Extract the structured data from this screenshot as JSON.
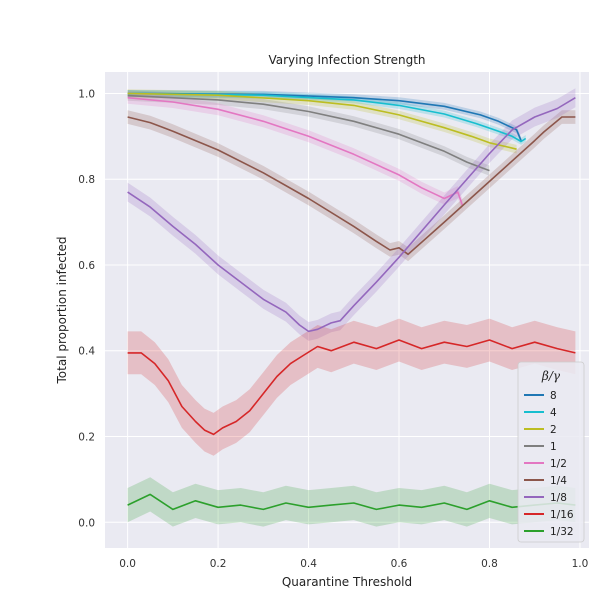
{
  "chart_data": {
    "type": "line",
    "title": "Varying Infection Strength",
    "xlabel": "Quarantine Threshold",
    "ylabel": "Total proportion infected",
    "xlim": [
      -0.05,
      1.02
    ],
    "ylim": [
      -0.06,
      1.05
    ],
    "xticks": [
      0.0,
      0.2,
      0.4,
      0.6,
      0.8,
      1.0
    ],
    "xtick_labels": [
      "0.0",
      "0.2",
      "0.4",
      "0.6",
      "0.8",
      "1.0"
    ],
    "yticks": [
      0.0,
      0.2,
      0.4,
      0.6,
      0.8,
      1.0
    ],
    "ytick_labels": [
      "0.0",
      "0.2",
      "0.4",
      "0.6",
      "0.8",
      "1.0"
    ],
    "grid": true,
    "legend": {
      "title": "β/γ",
      "position": "lower-right"
    },
    "series": [
      {
        "name": "8",
        "color": "#1f77b4",
        "band": 0.008,
        "points": [
          [
            0.0,
            1.0
          ],
          [
            0.3,
            0.998
          ],
          [
            0.5,
            0.99
          ],
          [
            0.6,
            0.983
          ],
          [
            0.7,
            0.97
          ],
          [
            0.78,
            0.95
          ],
          [
            0.82,
            0.935
          ],
          [
            0.85,
            0.92
          ],
          [
            0.86,
            0.915
          ],
          [
            0.87,
            0.89
          ]
        ]
      },
      {
        "name": "4",
        "color": "#17becf",
        "band": 0.008,
        "points": [
          [
            0.0,
            1.0
          ],
          [
            0.3,
            0.996
          ],
          [
            0.5,
            0.985
          ],
          [
            0.6,
            0.972
          ],
          [
            0.7,
            0.952
          ],
          [
            0.77,
            0.93
          ],
          [
            0.82,
            0.912
          ],
          [
            0.85,
            0.9
          ],
          [
            0.87,
            0.888
          ],
          [
            0.88,
            0.895
          ]
        ]
      },
      {
        "name": "2",
        "color": "#bcbd22",
        "band": 0.01,
        "points": [
          [
            0.0,
            1.0
          ],
          [
            0.2,
            0.996
          ],
          [
            0.4,
            0.983
          ],
          [
            0.5,
            0.972
          ],
          [
            0.6,
            0.95
          ],
          [
            0.7,
            0.92
          ],
          [
            0.76,
            0.9
          ],
          [
            0.8,
            0.885
          ],
          [
            0.84,
            0.875
          ],
          [
            0.86,
            0.87
          ]
        ]
      },
      {
        "name": "1",
        "color": "#7f7f7f",
        "band": 0.012,
        "points": [
          [
            0.0,
            0.995
          ],
          [
            0.2,
            0.985
          ],
          [
            0.3,
            0.975
          ],
          [
            0.4,
            0.958
          ],
          [
            0.5,
            0.935
          ],
          [
            0.6,
            0.905
          ],
          [
            0.65,
            0.885
          ],
          [
            0.7,
            0.865
          ],
          [
            0.75,
            0.84
          ],
          [
            0.78,
            0.828
          ],
          [
            0.8,
            0.82
          ]
        ]
      },
      {
        "name": "1/2",
        "color": "#e377c2",
        "band": 0.014,
        "points": [
          [
            0.0,
            0.99
          ],
          [
            0.1,
            0.98
          ],
          [
            0.2,
            0.963
          ],
          [
            0.3,
            0.935
          ],
          [
            0.4,
            0.9
          ],
          [
            0.5,
            0.858
          ],
          [
            0.6,
            0.81
          ],
          [
            0.65,
            0.78
          ],
          [
            0.68,
            0.765
          ],
          [
            0.7,
            0.755
          ],
          [
            0.73,
            0.77
          ],
          [
            0.74,
            0.74
          ]
        ]
      },
      {
        "name": "1/4",
        "color": "#8c564b",
        "band": 0.016,
        "points": [
          [
            0.0,
            0.945
          ],
          [
            0.05,
            0.932
          ],
          [
            0.1,
            0.912
          ],
          [
            0.2,
            0.868
          ],
          [
            0.3,
            0.815
          ],
          [
            0.4,
            0.755
          ],
          [
            0.5,
            0.69
          ],
          [
            0.55,
            0.655
          ],
          [
            0.58,
            0.635
          ],
          [
            0.6,
            0.64
          ],
          [
            0.62,
            0.625
          ],
          [
            0.7,
            0.7
          ],
          [
            0.8,
            0.795
          ],
          [
            0.9,
            0.89
          ],
          [
            0.92,
            0.91
          ],
          [
            0.96,
            0.945
          ],
          [
            0.99,
            0.945
          ]
        ]
      },
      {
        "name": "1/8",
        "color": "#9467bd",
        "band": 0.022,
        "points": [
          [
            0.0,
            0.77
          ],
          [
            0.05,
            0.735
          ],
          [
            0.1,
            0.69
          ],
          [
            0.15,
            0.648
          ],
          [
            0.2,
            0.6
          ],
          [
            0.25,
            0.56
          ],
          [
            0.3,
            0.52
          ],
          [
            0.35,
            0.49
          ],
          [
            0.38,
            0.46
          ],
          [
            0.4,
            0.445
          ],
          [
            0.42,
            0.45
          ],
          [
            0.45,
            0.465
          ],
          [
            0.47,
            0.47
          ],
          [
            0.5,
            0.505
          ],
          [
            0.55,
            0.56
          ],
          [
            0.6,
            0.618
          ],
          [
            0.7,
            0.74
          ],
          [
            0.8,
            0.86
          ],
          [
            0.85,
            0.915
          ],
          [
            0.9,
            0.945
          ],
          [
            0.95,
            0.965
          ],
          [
            0.99,
            0.99
          ]
        ]
      },
      {
        "name": "1/16",
        "color": "#d62728",
        "band": 0.05,
        "points": [
          [
            0.0,
            0.395
          ],
          [
            0.03,
            0.395
          ],
          [
            0.06,
            0.37
          ],
          [
            0.09,
            0.33
          ],
          [
            0.12,
            0.27
          ],
          [
            0.15,
            0.235
          ],
          [
            0.17,
            0.215
          ],
          [
            0.19,
            0.205
          ],
          [
            0.21,
            0.22
          ],
          [
            0.24,
            0.235
          ],
          [
            0.27,
            0.26
          ],
          [
            0.3,
            0.3
          ],
          [
            0.33,
            0.34
          ],
          [
            0.36,
            0.37
          ],
          [
            0.39,
            0.39
          ],
          [
            0.42,
            0.41
          ],
          [
            0.45,
            0.4
          ],
          [
            0.5,
            0.42
          ],
          [
            0.55,
            0.405
          ],
          [
            0.6,
            0.425
          ],
          [
            0.65,
            0.405
          ],
          [
            0.7,
            0.42
          ],
          [
            0.75,
            0.41
          ],
          [
            0.8,
            0.425
          ],
          [
            0.85,
            0.405
          ],
          [
            0.9,
            0.42
          ],
          [
            0.95,
            0.405
          ],
          [
            0.99,
            0.395
          ]
        ]
      },
      {
        "name": "1/32",
        "color": "#2ca02c",
        "band": 0.04,
        "points": [
          [
            0.0,
            0.04
          ],
          [
            0.05,
            0.065
          ],
          [
            0.1,
            0.03
          ],
          [
            0.15,
            0.05
          ],
          [
            0.2,
            0.035
          ],
          [
            0.25,
            0.04
          ],
          [
            0.3,
            0.03
          ],
          [
            0.35,
            0.045
          ],
          [
            0.4,
            0.035
          ],
          [
            0.45,
            0.04
          ],
          [
            0.5,
            0.045
          ],
          [
            0.55,
            0.03
          ],
          [
            0.6,
            0.04
          ],
          [
            0.65,
            0.035
          ],
          [
            0.7,
            0.045
          ],
          [
            0.75,
            0.03
          ],
          [
            0.8,
            0.05
          ],
          [
            0.85,
            0.035
          ],
          [
            0.9,
            0.04
          ],
          [
            0.95,
            0.045
          ],
          [
            0.99,
            0.04
          ]
        ]
      }
    ]
  }
}
